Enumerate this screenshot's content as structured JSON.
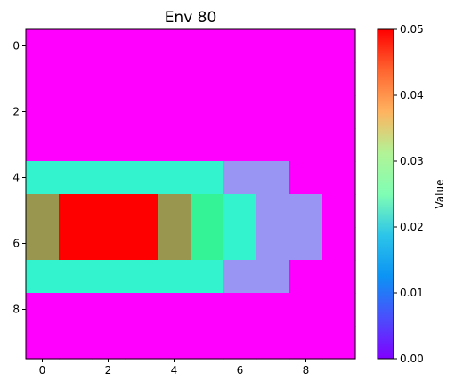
{
  "chart_data": {
    "type": "heatmap",
    "title": "Env 80",
    "xlabel": "",
    "ylabel": "",
    "x_ticks": [
      "0",
      "2",
      "4",
      "6",
      "8"
    ],
    "y_ticks": [
      "0",
      "2",
      "4",
      "6",
      "8"
    ],
    "xlim": [
      -0.5,
      9.5
    ],
    "ylim": [
      9.5,
      -0.5
    ],
    "colormap": "rainbow",
    "colorbar": {
      "label": "Value",
      "range": [
        0.0,
        0.05
      ],
      "ticks": [
        "0.00",
        "0.01",
        "0.02",
        "0.03",
        "0.04",
        "0.05"
      ]
    },
    "values": [
      [
        0,
        0,
        0,
        0,
        0,
        0,
        0,
        0,
        0,
        0
      ],
      [
        0,
        0,
        0,
        0,
        0,
        0,
        0,
        0,
        0,
        0
      ],
      [
        0,
        0,
        0,
        0,
        0,
        0,
        0,
        0,
        0,
        0
      ],
      [
        0,
        0,
        0,
        0,
        0,
        0,
        0,
        0,
        0,
        0
      ],
      [
        0.02,
        0.02,
        0.02,
        0.02,
        0.02,
        0.02,
        0.01,
        0.01,
        0,
        0
      ],
      [
        0.04,
        0.05,
        0.05,
        0.05,
        0.04,
        0.03,
        0.02,
        0.01,
        0.01,
        0
      ],
      [
        0.04,
        0.05,
        0.05,
        0.05,
        0.04,
        0.03,
        0.02,
        0.01,
        0.01,
        0
      ],
      [
        0.02,
        0.02,
        0.02,
        0.02,
        0.02,
        0.02,
        0.01,
        0.01,
        0,
        0
      ],
      [
        0,
        0,
        0,
        0,
        0,
        0,
        0,
        0,
        0,
        0
      ],
      [
        0,
        0,
        0,
        0,
        0,
        0,
        0,
        0,
        0,
        0
      ]
    ]
  }
}
